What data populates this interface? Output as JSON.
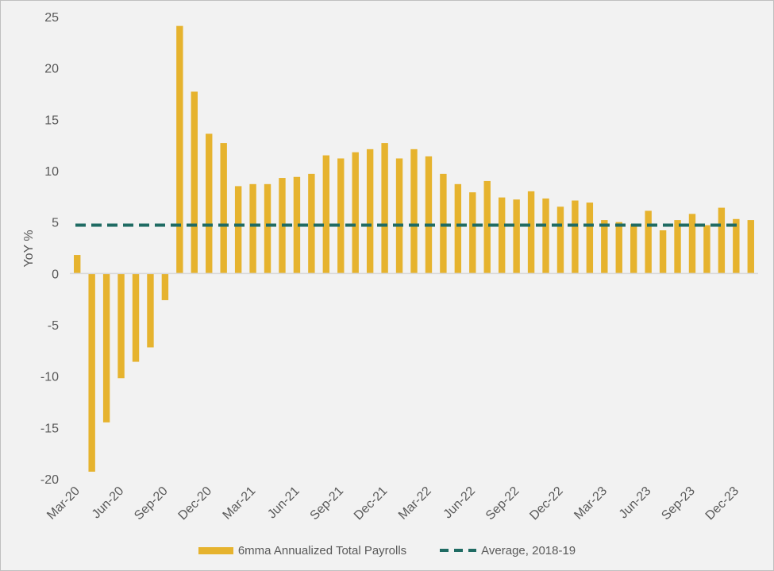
{
  "chart_data": {
    "type": "bar",
    "title": "",
    "xlabel": "",
    "ylabel": "YoY %",
    "ylim": [
      -20,
      25
    ],
    "yticks": [
      25,
      20,
      15,
      10,
      5,
      0,
      -5,
      -10,
      -15,
      -20
    ],
    "categories": [
      "Mar-20",
      "Apr-20",
      "May-20",
      "Jun-20",
      "Jul-20",
      "Aug-20",
      "Sep-20",
      "Oct-20",
      "Nov-20",
      "Dec-20",
      "Jan-21",
      "Feb-21",
      "Mar-21",
      "Apr-21",
      "May-21",
      "Jun-21",
      "Jul-21",
      "Aug-21",
      "Sep-21",
      "Oct-21",
      "Nov-21",
      "Dec-21",
      "Jan-22",
      "Feb-22",
      "Mar-22",
      "Apr-22",
      "May-22",
      "Jun-22",
      "Jul-22",
      "Aug-22",
      "Sep-22",
      "Oct-22",
      "Nov-22",
      "Dec-22",
      "Jan-23",
      "Feb-23",
      "Mar-23",
      "Apr-23",
      "May-23",
      "Jun-23",
      "Jul-23",
      "Aug-23",
      "Sep-23",
      "Oct-23",
      "Nov-23",
      "Dec-23",
      "Jan-24"
    ],
    "xtick_labels": [
      "Mar-20",
      "Jun-20",
      "Sep-20",
      "Dec-20",
      "Mar-21",
      "Jun-21",
      "Sep-21",
      "Dec-21",
      "Mar-22",
      "Jun-22",
      "Sep-22",
      "Dec-22",
      "Mar-23",
      "Jun-23",
      "Sep-23",
      "Dec-23"
    ],
    "series": [
      {
        "name": "6mma Annualized Total Payrolls",
        "type": "bar",
        "color": "#e6b32e",
        "values": [
          1.8,
          -19.3,
          -14.5,
          -10.2,
          -8.6,
          -7.2,
          -2.6,
          24.1,
          17.7,
          13.6,
          12.7,
          8.5,
          8.7,
          8.7,
          9.3,
          9.4,
          9.7,
          11.5,
          11.2,
          11.8,
          12.1,
          12.7,
          11.2,
          12.1,
          11.4,
          9.7,
          8.7,
          7.9,
          9.0,
          7.4,
          7.2,
          8.0,
          7.3,
          6.5,
          7.1,
          6.9,
          5.2,
          5.0,
          4.8,
          6.1,
          4.2,
          5.2,
          5.8,
          4.7,
          6.4,
          5.3,
          5.2
        ]
      },
      {
        "name": "Average, 2018-19",
        "type": "line",
        "style": "dashed",
        "color": "#1f6b63",
        "value": 4.7
      }
    ],
    "grid": false,
    "legend_position": "bottom-center"
  }
}
